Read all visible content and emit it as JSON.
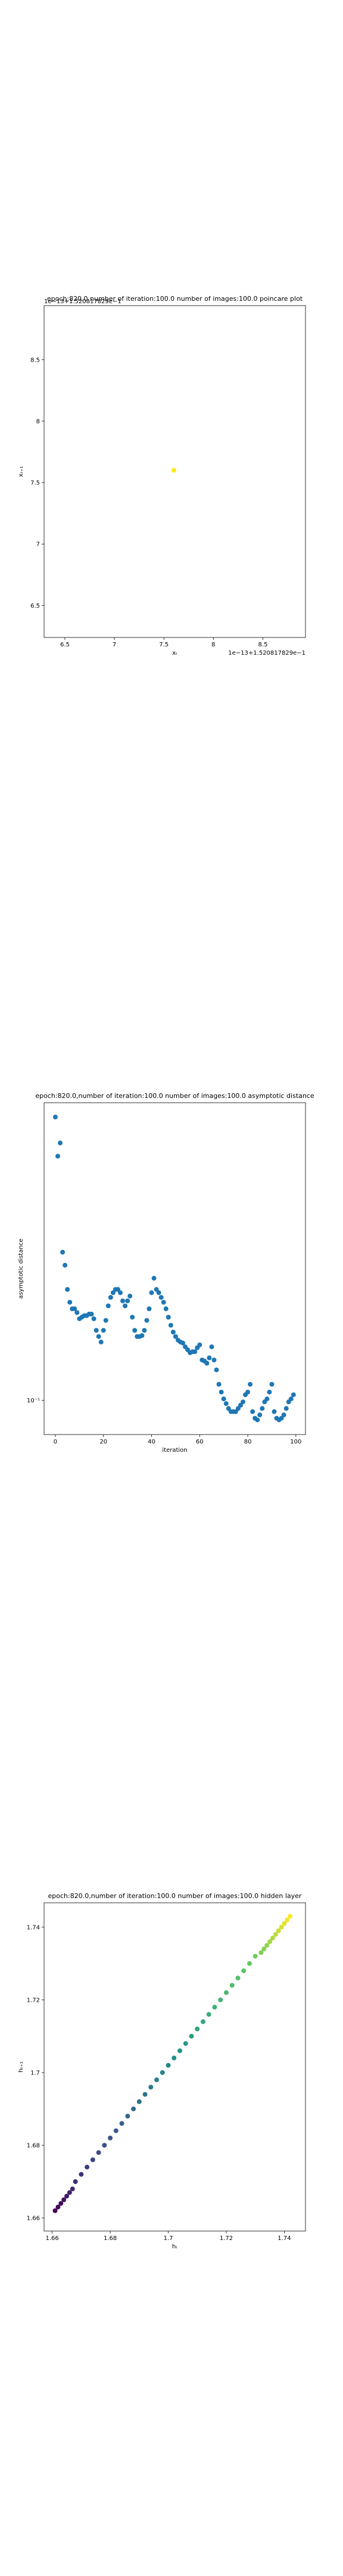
{
  "chart_data": [
    {
      "type": "scatter",
      "title": "epoch:820.0,number of iteration:100.0 number of images:100.0 poincare plot",
      "x_label": "xₜ",
      "y_label": "xₜ₊₁",
      "x_offset_text": "1e−13+1.520817829e−1",
      "y_offset_text": "1e−13+1.520817829e−1",
      "x": [
        7.6
      ],
      "y": [
        7.6
      ],
      "color": "#fde725",
      "xlim": [
        6.29,
        8.93
      ],
      "ylim": [
        6.24,
        8.94
      ],
      "xticks": [
        6.5,
        7.0,
        7.5,
        8.0,
        8.5
      ],
      "yticks": [
        6.5,
        7.0,
        7.5,
        8.0,
        8.5
      ]
    },
    {
      "type": "scatter",
      "title": "epoch:820.0,number of iteration:100.0  number of images:100.0 asymptotic distance",
      "x_label": "iteration",
      "y_label": "asymptotic distance",
      "yscale": "log",
      "color": "#1f77b4",
      "x": [
        0,
        1,
        2,
        3,
        4,
        5,
        6,
        7,
        8,
        9,
        10,
        11,
        12,
        13,
        14,
        15,
        16,
        17,
        18,
        19,
        20,
        21,
        22,
        23,
        24,
        25,
        26,
        27,
        28,
        29,
        30,
        31,
        32,
        33,
        34,
        35,
        36,
        37,
        38,
        39,
        40,
        41,
        42,
        43,
        44,
        45,
        46,
        47,
        48,
        49,
        50,
        51,
        52,
        53,
        54,
        55,
        56,
        57,
        58,
        59,
        60,
        61,
        62,
        63,
        64,
        65,
        66,
        67,
        68,
        69,
        70,
        71,
        72,
        73,
        74,
        75,
        76,
        77,
        78,
        79,
        80,
        81,
        82,
        83,
        84,
        85,
        86,
        87,
        88,
        89,
        90,
        91,
        92,
        93,
        94,
        95,
        96,
        97,
        98,
        99
      ],
      "y": [
        0.741,
        0.562,
        0.617,
        0.285,
        0.26,
        0.219,
        0.2,
        0.191,
        0.191,
        0.186,
        0.178,
        0.18,
        0.182,
        0.182,
        0.184,
        0.184,
        0.178,
        0.164,
        0.157,
        0.151,
        0.164,
        0.176,
        0.195,
        0.207,
        0.214,
        0.219,
        0.219,
        0.214,
        0.202,
        0.195,
        0.202,
        0.209,
        0.18,
        0.164,
        0.157,
        0.157,
        0.158,
        0.164,
        0.176,
        0.191,
        0.214,
        0.237,
        0.219,
        0.214,
        0.207,
        0.2,
        0.191,
        0.18,
        0.17,
        0.162,
        0.157,
        0.153,
        0.151,
        0.15,
        0.146,
        0.143,
        0.14,
        0.141,
        0.141,
        0.145,
        0.148,
        0.133,
        0.132,
        0.13,
        0.135,
        0.146,
        0.133,
        0.124,
        0.112,
        0.106,
        0.101,
        0.0977,
        0.0944,
        0.0923,
        0.0923,
        0.0923,
        0.0944,
        0.0966,
        0.0989,
        0.104,
        0.106,
        0.112,
        0.0923,
        0.0881,
        0.0871,
        0.0902,
        0.0944,
        0.0989,
        0.101,
        0.106,
        0.112,
        0.0923,
        0.0881,
        0.0871,
        0.0881,
        0.0902,
        0.0944,
        0.0989,
        0.101,
        0.104
      ],
      "xlim": [
        -4.7,
        104
      ],
      "ylim": [
        0.0785,
        0.82
      ],
      "xticks": [
        0,
        20,
        40,
        60,
        80,
        100
      ],
      "yticks": [
        {
          "value": 0.1,
          "label": "10⁻¹"
        }
      ]
    },
    {
      "type": "scatter",
      "title": "epoch:820.0,number of iteration:100.0  number of images:100.0 hidden layer",
      "x_label": "hₜ",
      "y_label": "hₜ₊₁",
      "colormap": "viridis",
      "x": [
        1.661,
        1.662,
        1.663,
        1.664,
        1.665,
        1.666,
        1.667,
        1.668,
        1.67,
        1.672,
        1.674,
        1.676,
        1.678,
        1.68,
        1.682,
        1.684,
        1.686,
        1.688,
        1.69,
        1.692,
        1.694,
        1.696,
        1.698,
        1.7,
        1.702,
        1.704,
        1.706,
        1.708,
        1.71,
        1.712,
        1.714,
        1.716,
        1.718,
        1.72,
        1.722,
        1.724,
        1.726,
        1.728,
        1.73,
        1.732,
        1.733,
        1.734,
        1.735,
        1.736,
        1.737,
        1.738,
        1.739,
        1.74,
        1.741,
        1.742
      ],
      "y": [
        1.662,
        1.663,
        1.664,
        1.665,
        1.666,
        1.667,
        1.668,
        1.67,
        1.672,
        1.674,
        1.676,
        1.678,
        1.68,
        1.682,
        1.684,
        1.686,
        1.688,
        1.69,
        1.692,
        1.694,
        1.696,
        1.698,
        1.7,
        1.702,
        1.704,
        1.706,
        1.708,
        1.71,
        1.712,
        1.714,
        1.716,
        1.718,
        1.72,
        1.722,
        1.724,
        1.726,
        1.728,
        1.73,
        1.732,
        1.733,
        1.734,
        1.735,
        1.736,
        1.737,
        1.738,
        1.739,
        1.74,
        1.741,
        1.742,
        1.743
      ],
      "xlim": [
        1.6572,
        1.7473
      ],
      "ylim": [
        1.6564,
        1.7467
      ],
      "xticks": [
        1.66,
        1.68,
        1.7,
        1.72,
        1.74
      ],
      "yticks": [
        1.66,
        1.68,
        1.7,
        1.72,
        1.74
      ]
    }
  ]
}
